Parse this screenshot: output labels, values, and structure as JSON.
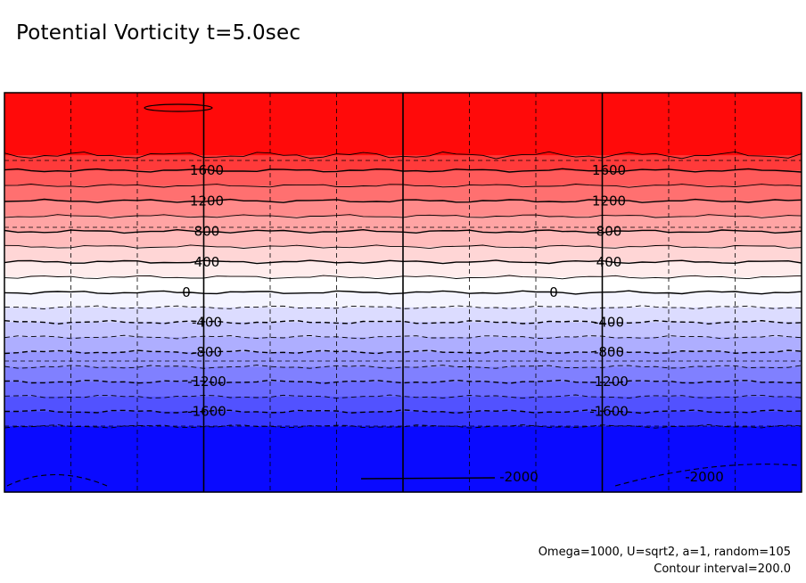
{
  "chart_data": {
    "type": "contour",
    "title": "Potential Vorticity t=5.0sec",
    "field": "potential vorticity",
    "contour_interval": 200.0,
    "levels": [
      -2000,
      -1800,
      -1600,
      -1400,
      -1200,
      -1000,
      -800,
      -600,
      -400,
      -200,
      0,
      200,
      400,
      600,
      800,
      1000,
      1200,
      1400,
      1600,
      1800,
      2000
    ],
    "zonal_bands_top_to_bottom": [
      {
        "from": 1800,
        "to": 2000,
        "color": "#ff0a0a"
      },
      {
        "from": 1600,
        "to": 1800,
        "color": "#ff3a3a"
      },
      {
        "from": 1400,
        "to": 1600,
        "color": "#ff5a5a"
      },
      {
        "from": 1200,
        "to": 1400,
        "color": "#ff7070"
      },
      {
        "from": 1000,
        "to": 1200,
        "color": "#ff8a8a"
      },
      {
        "from": 800,
        "to": 1000,
        "color": "#ffa4a4"
      },
      {
        "from": 600,
        "to": 800,
        "color": "#ffbcbc"
      },
      {
        "from": 400,
        "to": 600,
        "color": "#ffd6d6"
      },
      {
        "from": 200,
        "to": 400,
        "color": "#ffecec"
      },
      {
        "from": 0,
        "to": 200,
        "color": "#ffffff"
      },
      {
        "from": -200,
        "to": 0,
        "color": "#f4f4ff"
      },
      {
        "from": -400,
        "to": -200,
        "color": "#dcdcff"
      },
      {
        "from": -600,
        "to": -400,
        "color": "#c4c4ff"
      },
      {
        "from": -800,
        "to": -600,
        "color": "#aeaeff"
      },
      {
        "from": -1000,
        "to": -800,
        "color": "#9696ff"
      },
      {
        "from": -1200,
        "to": -1000,
        "color": "#8080ff"
      },
      {
        "from": -1400,
        "to": -1200,
        "color": "#6a6aff"
      },
      {
        "from": -1600,
        "to": -1400,
        "color": "#5252ff"
      },
      {
        "from": -1800,
        "to": -1600,
        "color": "#3838ff"
      },
      {
        "from": -2000,
        "to": -1800,
        "color": "#0a0aff"
      }
    ],
    "contour_labels": [
      {
        "text": "1600",
        "level": 1600
      },
      {
        "text": "1200",
        "level": 1200
      },
      {
        "text": "800",
        "level": 800
      },
      {
        "text": "400",
        "level": 400
      },
      {
        "text": "0",
        "level": 0
      },
      {
        "text": "-400",
        "level": -400
      },
      {
        "text": "-800",
        "level": -800
      },
      {
        "text": "-1200",
        "level": -1200
      },
      {
        "text": "-1600",
        "level": -1600
      },
      {
        "text": "-2000",
        "level": -2000
      }
    ],
    "negative_contours": "dashed",
    "grid": "dashed",
    "colors": {
      "positive_max": "#ff0a0a",
      "zero": "#ffffff",
      "negative_max": "#0a0aff",
      "lines": "#000000"
    }
  },
  "footnote": {
    "params": "Omega=1000, U=sqrt2, a=1, random=105",
    "interval": "Contour interval=200.0"
  }
}
